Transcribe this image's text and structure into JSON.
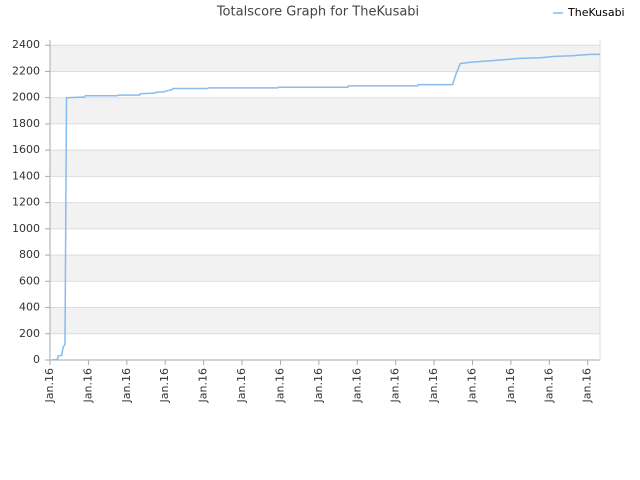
{
  "chart_data": {
    "type": "line",
    "title": "Totalscore Graph for TheKusabi",
    "x": [
      0.05,
      0.2,
      0.21,
      0.3,
      0.31,
      0.34,
      0.39,
      0.41,
      0.43,
      0.9,
      0.92,
      1.76,
      1.78,
      2.33,
      2.35,
      2.72,
      2.74,
      2.98,
      3.0,
      3.17,
      3.2,
      4.1,
      4.12,
      5.93,
      5.95,
      7.75,
      7.77,
      9.57,
      9.59,
      10.48,
      10.57,
      10.68,
      10.94,
      11.38,
      11.85,
      12.24,
      12.76,
      13.15,
      13.59,
      14.06,
      14.32
    ],
    "series": [
      {
        "name": "TheKusabi",
        "color": "#88bbee",
        "values": [
          0,
          5,
          30,
          35,
          40,
          95,
          120,
          1050,
          2000,
          2005,
          2015,
          2015,
          2020,
          2020,
          2030,
          2035,
          2040,
          2045,
          2050,
          2060,
          2070,
          2070,
          2075,
          2075,
          2080,
          2080,
          2090,
          2090,
          2100,
          2100,
          2180,
          2260,
          2270,
          2280,
          2290,
          2300,
          2305,
          2315,
          2320,
          2330,
          2330
        ]
      }
    ],
    "xlim": [
      0,
      14.32
    ],
    "xticks": [
      {
        "value": 0,
        "label": "Jan.16"
      },
      {
        "value": 1,
        "label": "Jan.16"
      },
      {
        "value": 2,
        "label": "Jan.16"
      },
      {
        "value": 3,
        "label": "Jan.16"
      },
      {
        "value": 4,
        "label": "Jan.16"
      },
      {
        "value": 5,
        "label": "Jan.16"
      },
      {
        "value": 6,
        "label": "Jan.16"
      },
      {
        "value": 7,
        "label": "Jan.16"
      },
      {
        "value": 8,
        "label": "Jan.16"
      },
      {
        "value": 9,
        "label": "Jan.16"
      },
      {
        "value": 10,
        "label": "Jan.16"
      },
      {
        "value": 11,
        "label": "Jan.16"
      },
      {
        "value": 12,
        "label": "Jan.16"
      },
      {
        "value": 13,
        "label": "Jan.16"
      },
      {
        "value": 14,
        "label": "Jan.16"
      }
    ],
    "ylim": [
      0,
      2440
    ],
    "yticks": [
      0,
      200,
      400,
      600,
      800,
      1000,
      1200,
      1400,
      1600,
      1800,
      2000,
      2200,
      2400
    ],
    "grid": true,
    "legend": "top-right"
  }
}
